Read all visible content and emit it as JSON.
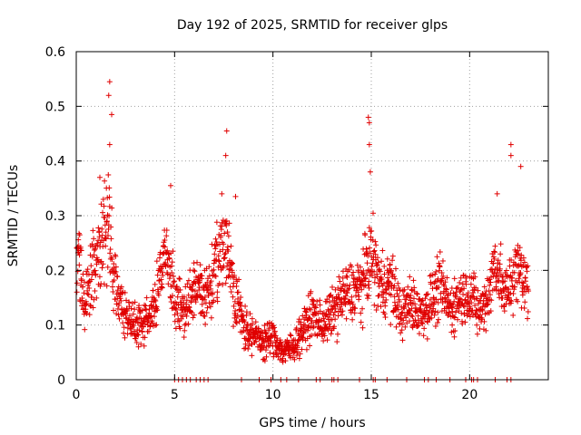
{
  "chart_data": {
    "type": "scatter",
    "title": "Day 192 of 2025, SRMTID for receiver glps",
    "xlabel": "GPS time / hours",
    "ylabel": "SRMTID / TECUs",
    "xlim": [
      0,
      24
    ],
    "ylim": [
      0,
      0.6
    ],
    "grid": true,
    "legend": "none",
    "marker": "+",
    "color": "#e00000",
    "xticks": [
      {
        "value": 0,
        "label": "0"
      },
      {
        "value": 5,
        "label": "5"
      },
      {
        "value": 10,
        "label": "10"
      },
      {
        "value": 15,
        "label": "15"
      },
      {
        "value": 20,
        "label": "20"
      }
    ],
    "yticks": [
      {
        "value": 0,
        "label": "0"
      },
      {
        "value": 0.1,
        "label": "0.1"
      },
      {
        "value": 0.2,
        "label": "0.2"
      },
      {
        "value": 0.3,
        "label": "0.3"
      },
      {
        "value": 0.4,
        "label": "0.4"
      },
      {
        "value": 0.5,
        "label": "0.5"
      },
      {
        "value": 0.6,
        "label": "0.6"
      }
    ],
    "trend": [
      [
        0.0,
        0.25
      ],
      [
        0.4,
        0.14
      ],
      [
        0.8,
        0.19
      ],
      [
        1.2,
        0.24
      ],
      [
        1.6,
        0.29
      ],
      [
        2.0,
        0.17
      ],
      [
        2.5,
        0.12
      ],
      [
        3.0,
        0.1
      ],
      [
        3.5,
        0.11
      ],
      [
        4.0,
        0.13
      ],
      [
        4.5,
        0.24
      ],
      [
        5.0,
        0.15
      ],
      [
        5.5,
        0.12
      ],
      [
        6.0,
        0.17
      ],
      [
        6.5,
        0.15
      ],
      [
        7.0,
        0.19
      ],
      [
        7.6,
        0.26
      ],
      [
        8.0,
        0.17
      ],
      [
        8.5,
        0.1
      ],
      [
        9.0,
        0.08
      ],
      [
        9.5,
        0.07
      ],
      [
        10.0,
        0.08
      ],
      [
        10.5,
        0.05
      ],
      [
        11.0,
        0.06
      ],
      [
        11.5,
        0.09
      ],
      [
        12.0,
        0.12
      ],
      [
        12.5,
        0.1
      ],
      [
        13.0,
        0.12
      ],
      [
        13.5,
        0.15
      ],
      [
        14.0,
        0.16
      ],
      [
        14.5,
        0.17
      ],
      [
        15.0,
        0.23
      ],
      [
        15.5,
        0.17
      ],
      [
        16.0,
        0.18
      ],
      [
        16.5,
        0.12
      ],
      [
        17.0,
        0.14
      ],
      [
        17.5,
        0.12
      ],
      [
        18.0,
        0.14
      ],
      [
        18.5,
        0.17
      ],
      [
        19.0,
        0.13
      ],
      [
        19.5,
        0.15
      ],
      [
        20.0,
        0.16
      ],
      [
        20.5,
        0.12
      ],
      [
        21.0,
        0.16
      ],
      [
        21.3,
        0.22
      ],
      [
        21.8,
        0.15
      ],
      [
        22.2,
        0.19
      ],
      [
        22.6,
        0.2
      ],
      [
        23.0,
        0.16
      ]
    ],
    "peaks": [
      {
        "x": 1.7,
        "y": 0.545
      },
      {
        "x": 1.65,
        "y": 0.52
      },
      {
        "x": 1.8,
        "y": 0.485
      },
      {
        "x": 1.7,
        "y": 0.43
      },
      {
        "x": 1.2,
        "y": 0.37
      },
      {
        "x": 4.8,
        "y": 0.355
      },
      {
        "x": 7.65,
        "y": 0.455
      },
      {
        "x": 7.6,
        "y": 0.41
      },
      {
        "x": 7.4,
        "y": 0.34
      },
      {
        "x": 8.1,
        "y": 0.335
      },
      {
        "x": 14.85,
        "y": 0.48
      },
      {
        "x": 14.9,
        "y": 0.47
      },
      {
        "x": 14.9,
        "y": 0.43
      },
      {
        "x": 14.95,
        "y": 0.38
      },
      {
        "x": 22.1,
        "y": 0.43
      },
      {
        "x": 22.1,
        "y": 0.41
      },
      {
        "x": 22.6,
        "y": 0.39
      },
      {
        "x": 21.4,
        "y": 0.34
      }
    ],
    "zeros": [
      5.0,
      5.2,
      5.4,
      5.6,
      5.8,
      6.1,
      6.3,
      6.5,
      6.7,
      8.4,
      9.3,
      9.9,
      10.4,
      10.7,
      11.3,
      12.2,
      12.4,
      13.0,
      13.1,
      13.3,
      14.4,
      15.1,
      15.2,
      15.8,
      16.8,
      17.7,
      17.9,
      18.3,
      19.0,
      19.8,
      20.1,
      20.2,
      20.4,
      21.3,
      21.9,
      22.1
    ]
  }
}
